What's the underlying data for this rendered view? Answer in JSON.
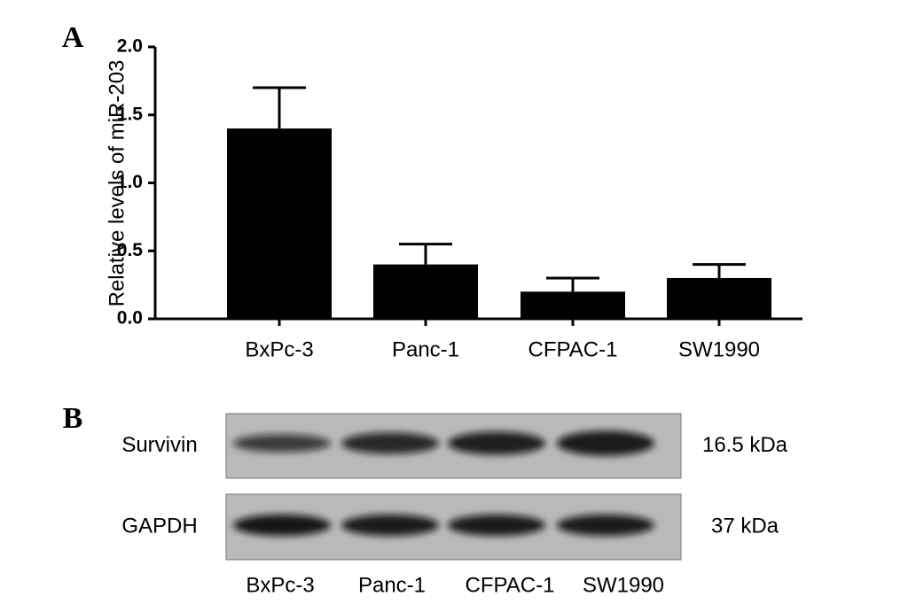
{
  "chart_data": {
    "type": "bar",
    "panel_label": "A",
    "y_label": "Relative levels of miR-203",
    "categories": [
      "BxPc-3",
      "Panc-1",
      "CFPAC-1",
      "SW1990"
    ],
    "values": [
      1.4,
      0.4,
      0.2,
      0.3
    ],
    "errors": [
      0.3,
      0.15,
      0.1,
      0.1
    ],
    "color": "#000000",
    "ylim": [
      0,
      2
    ],
    "yticks": [
      {
        "value": 0,
        "label": "0.0"
      },
      {
        "value": 0.5,
        "label": "0.5"
      },
      {
        "value": 1,
        "label": "1.0"
      },
      {
        "value": 1.5,
        "label": "1.5"
      },
      {
        "value": 2,
        "label": "2.0"
      }
    ],
    "grid": false
  },
  "blot": {
    "panel_label": "B",
    "rows": [
      {
        "name": "Survivin",
        "size": "16.5 kDa"
      },
      {
        "name": "GAPDH",
        "size": "37 kDa"
      }
    ],
    "lanes": [
      "BxPc-3",
      "Panc-1",
      "CFPAC-1",
      "SW1990"
    ]
  }
}
